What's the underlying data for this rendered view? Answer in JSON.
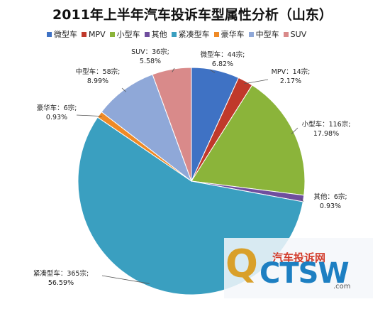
{
  "chart_data": {
    "type": "pie",
    "title": "2011年上半年汽车投诉车型属性分析（山东）",
    "legend_position": "top",
    "slices": [
      {
        "name": "微型车",
        "count_label": "44宗",
        "value": 44,
        "percent_label": "6.82%",
        "color": "#3f72c4"
      },
      {
        "name": "MPV",
        "count_label": "14宗",
        "value": 14,
        "percent_label": "2.17%",
        "color": "#c0392b"
      },
      {
        "name": "小型车",
        "count_label": "116宗",
        "value": 116,
        "percent_label": "17.98%",
        "color": "#8bb43a"
      },
      {
        "name": "其他",
        "count_label": "6宗",
        "value": 6,
        "percent_label": "0.93%",
        "color": "#6f4e9e"
      },
      {
        "name": "紧凑型车",
        "count_label": "365宗",
        "value": 365,
        "percent_label": "56.59%",
        "color": "#3a9fc0"
      },
      {
        "name": "豪华车",
        "count_label": "6宗",
        "value": 6,
        "percent_label": "0.93%",
        "color": "#ef8a26"
      },
      {
        "name": "中型车",
        "count_label": "58宗",
        "value": 58,
        "percent_label": "8.99%",
        "color": "#8fa8d8"
      },
      {
        "name": "SUV",
        "count_label": "36宗",
        "value": 36,
        "percent_label": "5.58%",
        "color": "#d98a8a"
      }
    ]
  },
  "watermark": {
    "logo_letter": "Q",
    "site_name": "汽车投诉网",
    "logo_letters": "CTSW",
    "url": ".com"
  }
}
